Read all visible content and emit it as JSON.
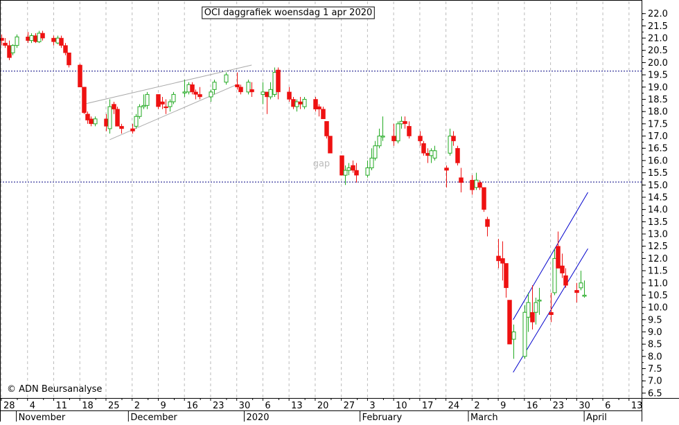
{
  "chart_data": {
    "type": "candlestick",
    "title": "OCI daggrafiek woensdag 1 apr 2020",
    "copyright": "© ADN Beursanalyse",
    "annotations": [
      {
        "text": "gap",
        "date": "2020-01-22",
        "y": 15.9
      }
    ],
    "y_ticks": [
      "6.5",
      "7.0",
      "7.5",
      "8.0",
      "8.5",
      "9.0",
      "9.5",
      "10.0",
      "10.5",
      "11.0",
      "11.5",
      "12.0",
      "12.5",
      "13.0",
      "13.5",
      "14.0",
      "14.5",
      "15.0",
      "15.5",
      "16.0",
      "16.5",
      "17.0",
      "17.5",
      "18.0",
      "18.5",
      "19.0",
      "19.5",
      "20.0",
      "20.5",
      "21.0",
      "21.5",
      "22.0"
    ],
    "ylim": [
      6.3,
      22.5
    ],
    "x_ticks": [
      {
        "date": "2019-10-28",
        "label": "28"
      },
      {
        "date": "2019-11-04",
        "label": "4"
      },
      {
        "date": "2019-11-11",
        "label": "11"
      },
      {
        "date": "2019-11-18",
        "label": "18"
      },
      {
        "date": "2019-11-25",
        "label": "25"
      },
      {
        "date": "2019-12-02",
        "label": "2"
      },
      {
        "date": "2019-12-09",
        "label": "9"
      },
      {
        "date": "2019-12-16",
        "label": "16"
      },
      {
        "date": "2019-12-23",
        "label": "23"
      },
      {
        "date": "2019-12-30",
        "label": "30"
      },
      {
        "date": "2020-01-06",
        "label": "6"
      },
      {
        "date": "2020-01-13",
        "label": "13"
      },
      {
        "date": "2020-01-20",
        "label": "20"
      },
      {
        "date": "2020-01-27",
        "label": "27"
      },
      {
        "date": "2020-02-03",
        "label": "3"
      },
      {
        "date": "2020-02-10",
        "label": "10"
      },
      {
        "date": "2020-02-17",
        "label": "17"
      },
      {
        "date": "2020-02-24",
        "label": "24"
      },
      {
        "date": "2020-03-02",
        "label": "2"
      },
      {
        "date": "2020-03-09",
        "label": "9"
      },
      {
        "date": "2020-03-16",
        "label": "16"
      },
      {
        "date": "2020-03-23",
        "label": "23"
      },
      {
        "date": "2020-03-30",
        "label": "30"
      },
      {
        "date": "2020-04-06",
        "label": "6"
      },
      {
        "date": "2020-04-13",
        "label": "13"
      }
    ],
    "month_labels": [
      {
        "date": "2019-11-01",
        "label": "November"
      },
      {
        "date": "2019-12-01",
        "label": "December"
      },
      {
        "date": "2020-01-01",
        "label": "2020"
      },
      {
        "date": "2020-02-01",
        "label": "February"
      },
      {
        "date": "2020-03-01",
        "label": "March"
      },
      {
        "date": "2020-04-01",
        "label": "April"
      }
    ],
    "x_range": [
      "2019-10-28",
      "2020-04-16"
    ],
    "grid": "vertical-dashed",
    "colors": {
      "up": "#22aa22",
      "down": "#ee1111",
      "trend": "#0000cc",
      "trend_gray": "#aaaaaa",
      "hline": "#000080",
      "grid": "#bbbbbb"
    },
    "horizontal_lines": [
      19.65,
      15.12
    ],
    "trendlines": [
      {
        "color": "gray",
        "points": [
          [
            "2019-11-19",
            18.3
          ],
          [
            "2020-01-03",
            19.9
          ]
        ]
      },
      {
        "color": "gray",
        "points": [
          [
            "2019-11-26",
            16.85
          ],
          [
            "2019-12-30",
            19.1
          ]
        ]
      },
      {
        "color": "blue",
        "points": [
          [
            "2020-03-13",
            9.5
          ],
          [
            "2020-04-02",
            14.7
          ]
        ]
      },
      {
        "color": "blue",
        "points": [
          [
            "2020-03-13",
            7.35
          ],
          [
            "2020-04-02",
            12.4
          ]
        ]
      }
    ],
    "ohlc": [
      [
        "2019-10-28",
        21.0,
        21.15,
        20.7,
        20.9
      ],
      [
        "2019-10-29",
        20.8,
        21.0,
        20.6,
        20.7
      ],
      [
        "2019-10-30",
        20.7,
        20.9,
        20.1,
        20.2
      ],
      [
        "2019-10-31",
        20.4,
        20.75,
        20.3,
        20.7
      ],
      [
        "2019-11-01",
        20.7,
        21.15,
        20.6,
        21.05
      ],
      [
        "2019-11-04",
        21.05,
        21.25,
        20.8,
        20.9
      ],
      [
        "2019-11-05",
        20.9,
        21.2,
        20.8,
        21.1
      ],
      [
        "2019-11-06",
        21.1,
        21.2,
        20.8,
        20.85
      ],
      [
        "2019-11-07",
        20.85,
        21.3,
        20.8,
        21.2
      ],
      [
        "2019-11-08",
        21.2,
        21.3,
        20.9,
        21.0
      ],
      [
        "2019-11-11",
        21.0,
        21.1,
        20.7,
        20.85
      ],
      [
        "2019-11-12",
        20.8,
        21.1,
        20.75,
        21.0
      ],
      [
        "2019-11-13",
        21.0,
        21.1,
        20.6,
        20.7
      ],
      [
        "2019-11-14",
        20.7,
        20.8,
        20.3,
        20.4
      ],
      [
        "2019-11-15",
        20.4,
        20.4,
        19.8,
        19.9
      ],
      [
        "2019-11-18",
        19.9,
        19.95,
        19.0,
        19.0
      ],
      [
        "2019-11-19",
        19.0,
        19.0,
        17.9,
        17.95
      ],
      [
        "2019-11-20",
        17.9,
        18.0,
        17.5,
        17.65
      ],
      [
        "2019-11-21",
        17.7,
        17.8,
        17.4,
        17.5
      ],
      [
        "2019-11-22",
        17.5,
        17.8,
        17.4,
        17.7
      ],
      [
        "2019-11-25",
        17.7,
        17.9,
        17.2,
        17.4
      ],
      [
        "2019-11-26",
        17.3,
        18.5,
        17.1,
        18.2
      ],
      [
        "2019-11-27",
        18.3,
        18.4,
        17.9,
        18.1
      ],
      [
        "2019-11-28",
        18.1,
        18.2,
        17.4,
        17.4
      ],
      [
        "2019-11-29",
        17.4,
        17.5,
        17.1,
        17.3
      ],
      [
        "2019-12-02",
        17.3,
        17.5,
        17.1,
        17.2
      ],
      [
        "2019-12-03",
        17.4,
        17.9,
        17.3,
        17.8
      ],
      [
        "2019-12-04",
        17.8,
        18.3,
        17.7,
        18.2
      ],
      [
        "2019-12-05",
        18.2,
        18.7,
        18.1,
        18.25
      ],
      [
        "2019-12-06",
        18.25,
        18.8,
        18.1,
        18.7
      ],
      [
        "2019-12-09",
        18.7,
        18.7,
        18.1,
        18.2
      ],
      [
        "2019-12-10",
        18.4,
        18.6,
        18.1,
        18.3
      ],
      [
        "2019-12-11",
        18.2,
        18.5,
        17.9,
        18.15
      ],
      [
        "2019-12-12",
        18.2,
        18.5,
        18.0,
        18.4
      ],
      [
        "2019-12-13",
        18.4,
        18.8,
        18.3,
        18.7
      ],
      [
        "2019-12-16",
        18.8,
        19.3,
        18.6,
        18.8
      ],
      [
        "2019-12-17",
        18.8,
        19.2,
        18.7,
        19.1
      ],
      [
        "2019-12-18",
        19.1,
        19.2,
        18.7,
        18.8
      ],
      [
        "2019-12-19",
        18.8,
        18.9,
        18.5,
        18.7
      ],
      [
        "2019-12-20",
        18.7,
        19.0,
        18.5,
        18.6
      ],
      [
        "2019-12-23",
        18.6,
        18.9,
        18.4,
        18.8
      ],
      [
        "2019-12-24",
        18.9,
        19.3,
        18.7,
        19.2
      ],
      [
        "2019-12-27",
        19.2,
        19.6,
        19.1,
        19.5
      ],
      [
        "2019-12-30",
        19.1,
        19.6,
        18.9,
        19.0
      ],
      [
        "2019-12-31",
        19.0,
        19.1,
        18.7,
        18.8
      ],
      [
        "2020-01-02",
        18.8,
        19.3,
        18.7,
        19.2
      ],
      [
        "2020-01-03",
        18.9,
        19.2,
        18.6,
        18.8
      ],
      [
        "2020-01-06",
        18.7,
        19.2,
        18.3,
        18.8
      ],
      [
        "2020-01-07",
        18.8,
        18.8,
        17.9,
        18.6
      ],
      [
        "2020-01-08",
        18.6,
        19.2,
        18.5,
        18.9
      ],
      [
        "2020-01-09",
        18.7,
        19.8,
        18.6,
        19.6
      ],
      [
        "2020-01-10",
        19.7,
        19.8,
        18.5,
        18.8
      ],
      [
        "2020-01-13",
        18.8,
        19.0,
        18.4,
        18.5
      ],
      [
        "2020-01-14",
        18.5,
        18.6,
        18.1,
        18.2
      ],
      [
        "2020-01-15",
        18.2,
        18.5,
        18.0,
        18.4
      ],
      [
        "2020-01-16",
        18.4,
        18.6,
        18.1,
        18.3
      ],
      [
        "2020-01-17",
        18.2,
        18.6,
        18.1,
        18.5
      ],
      [
        "2020-01-20",
        18.5,
        18.6,
        18.0,
        18.1
      ],
      [
        "2020-01-21",
        18.2,
        18.3,
        17.8,
        18.1
      ],
      [
        "2020-01-22",
        18.1,
        18.2,
        17.7,
        17.7
      ],
      [
        "2020-01-23",
        17.6,
        17.6,
        16.9,
        17.0
      ],
      [
        "2020-01-24",
        17.0,
        17.0,
        16.4,
        16.3
      ],
      [
        "2020-01-27",
        16.2,
        16.2,
        15.4,
        15.4
      ],
      [
        "2020-01-28",
        15.4,
        15.8,
        15.0,
        15.6
      ],
      [
        "2020-01-29",
        15.6,
        15.9,
        15.4,
        15.7
      ],
      [
        "2020-01-30",
        15.8,
        16.0,
        15.5,
        15.6
      ],
      [
        "2020-01-31",
        15.6,
        15.9,
        15.1,
        15.4
      ],
      [
        "2020-02-03",
        15.4,
        16.0,
        15.3,
        15.7
      ],
      [
        "2020-02-04",
        15.7,
        16.5,
        15.6,
        16.1
      ],
      [
        "2020-02-05",
        16.1,
        16.8,
        16.0,
        16.6
      ],
      [
        "2020-02-06",
        16.6,
        17.3,
        16.5,
        17.0
      ],
      [
        "2020-02-07",
        17.0,
        17.8,
        16.8,
        17.0
      ],
      [
        "2020-02-10",
        17.0,
        17.5,
        16.6,
        16.8
      ],
      [
        "2020-02-11",
        16.8,
        17.6,
        16.7,
        17.5
      ],
      [
        "2020-02-12",
        17.5,
        17.8,
        17.3,
        17.6
      ],
      [
        "2020-02-13",
        17.6,
        17.8,
        17.3,
        17.5
      ],
      [
        "2020-02-14",
        17.4,
        17.6,
        16.9,
        17.0
      ],
      [
        "2020-02-17",
        17.0,
        17.2,
        16.6,
        16.8
      ],
      [
        "2020-02-18",
        16.7,
        16.8,
        16.2,
        16.3
      ],
      [
        "2020-02-19",
        16.3,
        16.5,
        15.9,
        16.2
      ],
      [
        "2020-02-20",
        16.2,
        16.5,
        15.9,
        16.4
      ],
      [
        "2020-02-21",
        16.1,
        16.6,
        16.0,
        16.4
      ],
      [
        "2020-02-24",
        15.7,
        15.8,
        14.9,
        15.6
      ],
      [
        "2020-02-25",
        16.3,
        17.3,
        16.2,
        17.0
      ],
      [
        "2020-02-26",
        17.0,
        17.2,
        16.6,
        16.8
      ],
      [
        "2020-02-27",
        16.5,
        16.6,
        15.8,
        15.9
      ],
      [
        "2020-02-28",
        15.3,
        15.7,
        14.7,
        15.1
      ],
      [
        "2020-03-02",
        15.2,
        15.4,
        14.6,
        14.8
      ],
      [
        "2020-03-03",
        14.9,
        15.5,
        14.8,
        15.2
      ],
      [
        "2020-03-04",
        15.1,
        15.2,
        14.8,
        14.9
      ],
      [
        "2020-03-05",
        14.9,
        14.9,
        13.9,
        14.0
      ],
      [
        "2020-03-06",
        13.6,
        13.7,
        12.9,
        13.3
      ],
      [
        "2020-03-09",
        12.1,
        12.8,
        11.6,
        11.9
      ],
      [
        "2020-03-10",
        12.0,
        12.7,
        11.1,
        11.8
      ],
      [
        "2020-03-11",
        11.8,
        11.8,
        10.4,
        10.8
      ],
      [
        "2020-03-12",
        10.3,
        10.3,
        8.5,
        8.5
      ],
      [
        "2020-03-13",
        8.7,
        9.3,
        7.9,
        9.0
      ],
      [
        "2020-03-16",
        8.0,
        10.1,
        7.9,
        9.8
      ],
      [
        "2020-03-17",
        9.6,
        10.6,
        9.0,
        10.2
      ],
      [
        "2020-03-18",
        9.8,
        10.9,
        9.1,
        9.4
      ],
      [
        "2020-03-19",
        9.8,
        10.4,
        9.3,
        10.2
      ],
      [
        "2020-03-20",
        10.3,
        10.8,
        9.7,
        10.3
      ],
      [
        "2020-03-23",
        9.8,
        10.6,
        9.4,
        9.7
      ],
      [
        "2020-03-24",
        10.6,
        12.4,
        10.5,
        12.0
      ],
      [
        "2020-03-25",
        12.5,
        13.1,
        11.6,
        11.6
      ],
      [
        "2020-03-26",
        11.7,
        12.2,
        11.2,
        11.4
      ],
      [
        "2020-03-27",
        11.3,
        11.6,
        10.8,
        10.9
      ],
      [
        "2020-03-30",
        10.7,
        11.0,
        10.2,
        10.6
      ],
      [
        "2020-03-31",
        10.8,
        11.5,
        10.7,
        11.0
      ],
      [
        "2020-04-01",
        10.5,
        11.1,
        10.4,
        10.5
      ]
    ]
  }
}
